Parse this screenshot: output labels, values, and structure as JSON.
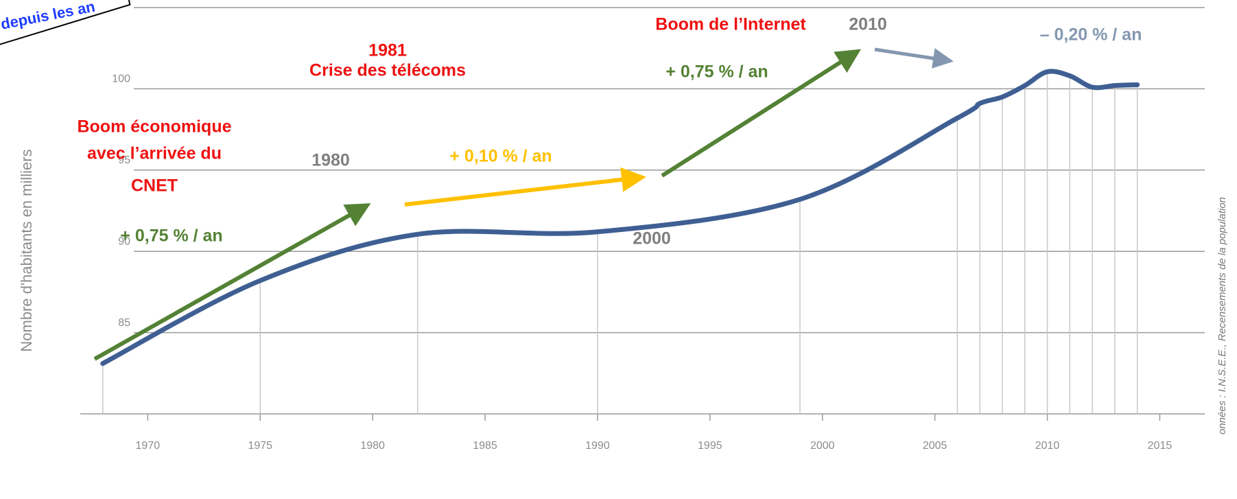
{
  "chart_data": {
    "type": "line",
    "y_label": "Nombre d'habitants en milliers",
    "source": "onnées : I.N.S.E.E., Recensements de la population",
    "banner": "depuis les an",
    "x": [
      1968,
      1975,
      1982,
      1990,
      1999,
      2006,
      2007,
      2008,
      2009,
      2010,
      2011,
      2012,
      2013,
      2014
    ],
    "series": [
      {
        "color": "#3f5f93",
        "values": [
          83.1,
          88.2,
          91.05,
          91.2,
          93.2,
          98.2,
          99.1,
          99.5,
          100.2,
          101.05,
          100.8,
          100.1,
          100.2,
          100.25
        ]
      }
    ],
    "xlim": [
      1967,
      2017
    ],
    "xticks": [
      1970,
      1975,
      1980,
      1985,
      1990,
      1995,
      2000,
      2005,
      2010,
      2015
    ],
    "ylim": [
      80,
      105
    ],
    "yticks": [
      85,
      90,
      95,
      100,
      105
    ],
    "grid": true,
    "drop_lines": true,
    "annotations": [
      {
        "text": "1981",
        "color": "#ee1111"
      },
      {
        "text": "Crise des télécoms",
        "color": "#ee1111"
      },
      {
        "text": "Boom de l’Internet",
        "color": "#ee1111"
      },
      {
        "text": "2010",
        "color": "#7f7f7f"
      },
      {
        "text": "– 0,20 % / an",
        "color": "#8497b0"
      },
      {
        "text": "+ 0,75 % / an",
        "color": "#548235"
      },
      {
        "text": "Boom économique",
        "color": "#ee1111"
      },
      {
        "text": "avec l’arrivée du",
        "color": "#ee1111"
      },
      {
        "text": "CNET",
        "color": "#ee1111"
      },
      {
        "text": "1980",
        "color": "#7f7f7f"
      },
      {
        "text": "+ 0,10 % / an",
        "color": "#ffc000"
      },
      {
        "text": "+ 0,75 % / an",
        "color": "#548235"
      },
      {
        "text": "2000",
        "color": "#7f7f7f"
      }
    ]
  }
}
